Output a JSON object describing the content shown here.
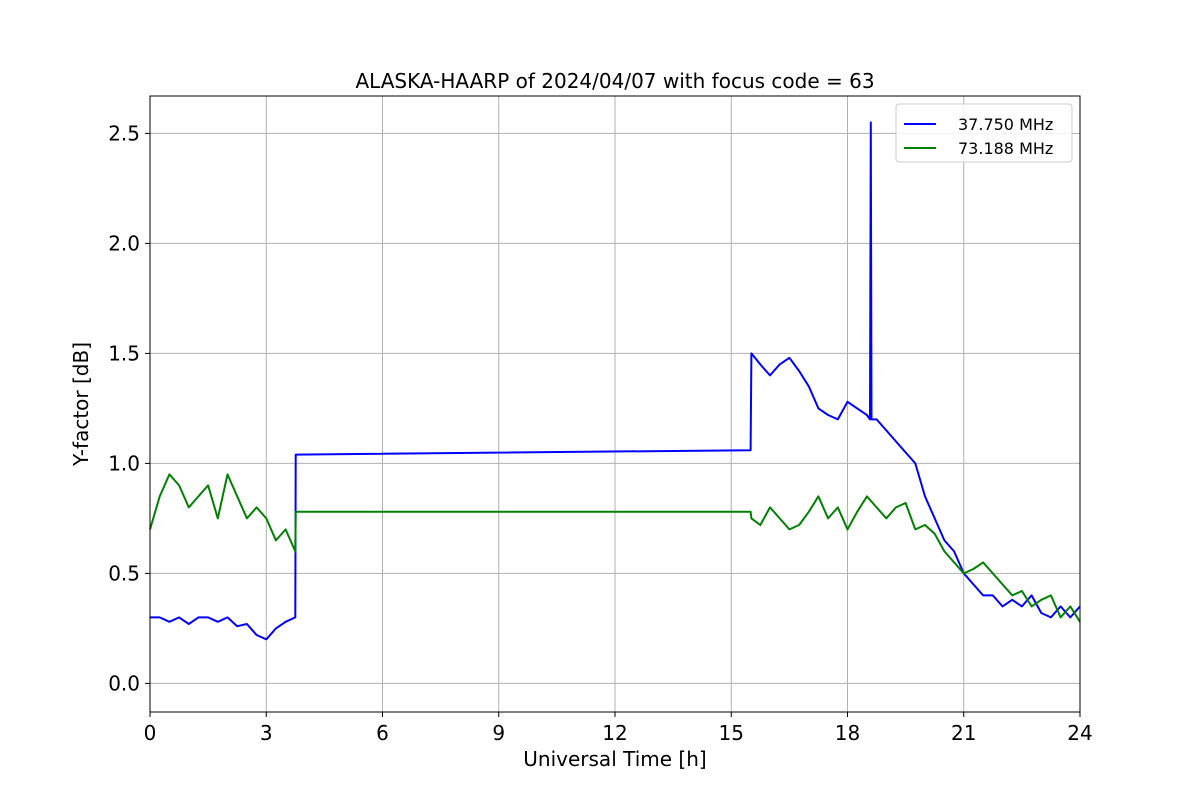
{
  "chart_data": {
    "type": "line",
    "title": "ALASKA-HAARP of 2024/04/07 with focus code = 63",
    "xlabel": "Universal Time [h]",
    "ylabel": "Y-factor [dB]",
    "xlim": [
      0,
      24
    ],
    "ylim": [
      -0.13,
      2.67
    ],
    "xticks": [
      0,
      3,
      6,
      9,
      12,
      15,
      18,
      21,
      24
    ],
    "yticks": [
      0.0,
      0.5,
      1.0,
      1.5,
      2.0,
      2.5
    ],
    "xtick_labels": [
      "0",
      "3",
      "6",
      "9",
      "12",
      "15",
      "18",
      "21",
      "24"
    ],
    "ytick_labels": [
      "0.0",
      "0.5",
      "1.0",
      "1.5",
      "2.0",
      "2.5"
    ],
    "grid": true,
    "legend_position": "top-right",
    "series": [
      {
        "name": "37.750 MHz",
        "color": "#0000ff",
        "x": [
          0.0,
          0.25,
          0.5,
          0.75,
          1.0,
          1.25,
          1.5,
          1.75,
          2.0,
          2.25,
          2.5,
          2.75,
          3.0,
          3.25,
          3.5,
          3.75,
          3.76,
          15.5,
          15.52,
          15.75,
          16.0,
          16.25,
          16.5,
          16.75,
          17.0,
          17.25,
          17.5,
          17.75,
          18.0,
          18.25,
          18.5,
          18.58,
          18.6,
          18.62,
          18.75,
          19.0,
          19.25,
          19.5,
          19.75,
          20.0,
          20.25,
          20.5,
          20.75,
          21.0,
          21.25,
          21.5,
          21.75,
          22.0,
          22.25,
          22.5,
          22.75,
          23.0,
          23.25,
          23.5,
          23.75,
          24.0
        ],
        "y": [
          0.3,
          0.3,
          0.28,
          0.3,
          0.27,
          0.3,
          0.3,
          0.28,
          0.3,
          0.26,
          0.27,
          0.22,
          0.2,
          0.25,
          0.28,
          0.3,
          1.04,
          1.06,
          1.5,
          1.45,
          1.4,
          1.45,
          1.48,
          1.42,
          1.35,
          1.25,
          1.22,
          1.2,
          1.28,
          1.25,
          1.22,
          1.2,
          2.55,
          1.2,
          1.2,
          1.15,
          1.1,
          1.05,
          1.0,
          0.85,
          0.75,
          0.65,
          0.6,
          0.5,
          0.45,
          0.4,
          0.4,
          0.35,
          0.38,
          0.35,
          0.4,
          0.32,
          0.3,
          0.35,
          0.3,
          0.35
        ]
      },
      {
        "name": "73.188 MHz",
        "color": "#008000",
        "x": [
          0.0,
          0.25,
          0.5,
          0.75,
          1.0,
          1.25,
          1.5,
          1.75,
          2.0,
          2.25,
          2.5,
          2.75,
          3.0,
          3.25,
          3.5,
          3.75,
          3.76,
          15.5,
          15.52,
          15.75,
          16.0,
          16.25,
          16.5,
          16.75,
          17.0,
          17.25,
          17.5,
          17.75,
          18.0,
          18.25,
          18.5,
          18.75,
          19.0,
          19.25,
          19.5,
          19.75,
          20.0,
          20.25,
          20.5,
          20.75,
          21.0,
          21.25,
          21.5,
          21.75,
          22.0,
          22.25,
          22.5,
          22.75,
          23.0,
          23.25,
          23.5,
          23.75,
          24.0
        ],
        "y": [
          0.7,
          0.85,
          0.95,
          0.9,
          0.8,
          0.85,
          0.9,
          0.75,
          0.95,
          0.85,
          0.75,
          0.8,
          0.75,
          0.65,
          0.7,
          0.6,
          0.78,
          0.78,
          0.75,
          0.72,
          0.8,
          0.75,
          0.7,
          0.72,
          0.78,
          0.85,
          0.75,
          0.8,
          0.7,
          0.78,
          0.85,
          0.8,
          0.75,
          0.8,
          0.82,
          0.7,
          0.72,
          0.68,
          0.6,
          0.55,
          0.5,
          0.52,
          0.55,
          0.5,
          0.45,
          0.4,
          0.42,
          0.35,
          0.38,
          0.4,
          0.3,
          0.35,
          0.28
        ]
      }
    ]
  }
}
